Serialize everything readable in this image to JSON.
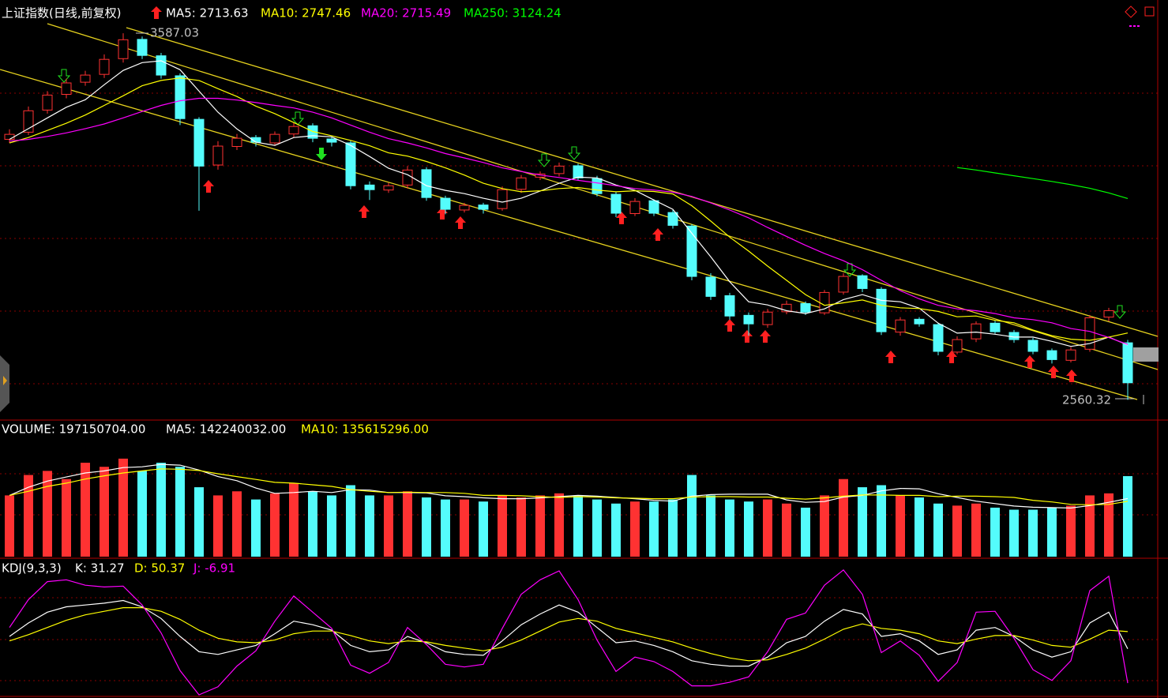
{
  "chart_data": [
    {
      "type": "candlestick",
      "title": "上证指数(日线,前复权)",
      "open": [
        3290,
        3310,
        3372,
        3416,
        3450,
        3472,
        3516,
        3570,
        3524,
        3468,
        3346,
        3218,
        3270,
        3295,
        3280,
        3305,
        3328,
        3291,
        3280,
        3162,
        3148,
        3162,
        3205,
        3125,
        3092,
        3106,
        3096,
        3150,
        3184,
        3194,
        3216,
        3180,
        3136,
        3082,
        3118,
        3085,
        3047,
        2904,
        2852,
        2797,
        2771,
        2807,
        2830,
        2804,
        2862,
        2908,
        2870,
        2750,
        2786,
        2771,
        2694,
        2731,
        2775,
        2749,
        2727,
        2698,
        2671,
        2702,
        2792,
        2720
      ],
      "high": [
        3318,
        3382,
        3425,
        3460,
        3482,
        3528,
        3587.03,
        3578,
        3532,
        3475,
        3352,
        3285,
        3305,
        3302,
        3312,
        3338,
        3335,
        3298,
        3286,
        3172,
        3168,
        3215,
        3212,
        3132,
        3112,
        3112,
        3158,
        3190,
        3200,
        3225,
        3222,
        3188,
        3142,
        3125,
        3122,
        3092,
        3052,
        2915,
        2860,
        2805,
        2815,
        2838,
        2836,
        2868,
        2915,
        2912,
        2876,
        2792,
        2792,
        2776,
        2738,
        2780,
        2782,
        2756,
        2734,
        2704,
        2708,
        2798,
        2818,
        2728
      ],
      "low": [
        3280,
        3302,
        3362,
        3405,
        3440,
        3462,
        3505,
        3515,
        3460,
        3330,
        3090,
        3205,
        3260,
        3270,
        3272,
        3295,
        3282,
        3270,
        3150,
        3120,
        3140,
        3152,
        3118,
        3080,
        3085,
        3082,
        3090,
        3140,
        3176,
        3186,
        3175,
        3130,
        3072,
        3075,
        3075,
        3040,
        2895,
        2840,
        2785,
        2740,
        2762,
        2800,
        2798,
        2798,
        2855,
        2862,
        2742,
        2740,
        2765,
        2685,
        2688,
        2722,
        2745,
        2720,
        2688,
        2662,
        2665,
        2695,
        2780,
        2560.32
      ],
      "close": [
        3304,
        3370,
        3414,
        3448,
        3470,
        3514,
        3569,
        3525,
        3470,
        3348,
        3215,
        3271,
        3293,
        3282,
        3304,
        3326,
        3293,
        3282,
        3160,
        3149,
        3160,
        3204,
        3127,
        3094,
        3105,
        3094,
        3149,
        3182,
        3193,
        3215,
        3182,
        3138,
        3083,
        3116,
        3083,
        3049,
        2906,
        2850,
        2795,
        2773,
        2806,
        2828,
        2806,
        2861,
        2906,
        2872,
        2751,
        2784,
        2773,
        2696,
        2729,
        2773,
        2751,
        2729,
        2696,
        2673,
        2700,
        2790,
        2810,
        2608
      ],
      "series": [
        {
          "label": "MA5: 2713.63",
          "color": "#ffffff",
          "values": [
            3290,
            3320,
            3350,
            3380,
            3401,
            3443,
            3483,
            3505,
            3510,
            3485,
            3425,
            3366,
            3319,
            3282,
            3273,
            3295,
            3300,
            3297,
            3273,
            3242,
            3209,
            3191,
            3160,
            3147,
            3138,
            3125,
            3114,
            3125,
            3145,
            3167,
            3184,
            3182,
            3162,
            3147,
            3120,
            3094,
            3027,
            2961,
            2891,
            2835,
            2826,
            2810,
            2802,
            2815,
            2841,
            2855,
            2839,
            2835,
            2817,
            2775,
            2747,
            2750,
            2744,
            2736,
            2736,
            2724,
            2710,
            2718,
            2736,
            2713.63
          ]
        },
        {
          "label": "MA10: 2747.46",
          "color": "#ffff00",
          "values": [
            3280,
            3295,
            3315,
            3335,
            3358,
            3385,
            3412,
            3440,
            3455,
            3462,
            3455,
            3432,
            3410,
            3383,
            3362,
            3337,
            3312,
            3300,
            3287,
            3272,
            3252,
            3243,
            3228,
            3210,
            3190,
            3167,
            3152,
            3143,
            3146,
            3152,
            3155,
            3148,
            3143,
            3146,
            3144,
            3137,
            3104,
            3061,
            3016,
            2977,
            2935,
            2895,
            2855,
            2825,
            2832,
            2840,
            2825,
            2818,
            2816,
            2808,
            2793,
            2795,
            2783,
            2776,
            2756,
            2740,
            2730,
            2727,
            2736,
            2747.46
          ]
        },
        {
          "label": "MA20: 2715.49",
          "color": "#ff00ff",
          "values": [
            3285,
            3290,
            3298,
            3308,
            3320,
            3333,
            3350,
            3368,
            3385,
            3398,
            3405,
            3405,
            3400,
            3393,
            3385,
            3378,
            3366,
            3350,
            3330,
            3310,
            3292,
            3280,
            3266,
            3250,
            3238,
            3225,
            3210,
            3200,
            3190,
            3183,
            3175,
            3168,
            3160,
            3152,
            3148,
            3142,
            3130,
            3112,
            3092,
            3070,
            3043,
            3018,
            2993,
            2970,
            2950,
            2925,
            2895,
            2866,
            2843,
            2825,
            2815,
            2810,
            2802,
            2790,
            2785,
            2776,
            2760,
            2752,
            2735,
            2715.49
          ]
        },
        {
          "label": "MA250: 3124.24",
          "color": "#00ff00",
          "values": [
            null,
            null,
            null,
            null,
            null,
            null,
            null,
            null,
            null,
            null,
            null,
            null,
            null,
            null,
            null,
            null,
            null,
            null,
            null,
            null,
            null,
            null,
            null,
            null,
            null,
            null,
            null,
            null,
            null,
            null,
            null,
            null,
            null,
            null,
            null,
            null,
            null,
            null,
            null,
            null,
            null,
            null,
            null,
            null,
            null,
            null,
            null,
            null,
            null,
            null,
            3211,
            3204,
            3196,
            3188,
            3180,
            3172,
            3163,
            3153,
            3140,
            3124.24
          ]
        }
      ],
      "up_color": "#ff3232",
      "down_color": "#54fcfc",
      "ylim": [
        2508,
        3625
      ],
      "annotations": [
        "3587.03",
        "2560.32"
      ]
    },
    {
      "type": "bar",
      "title": "VOLUME: 197150704.00",
      "values": [
        150000000,
        200000000,
        210000000,
        190000000,
        230000000,
        220000000,
        240000000,
        210000000,
        230000000,
        220000000,
        170000000,
        150000000,
        160000000,
        140000000,
        155000000,
        180000000,
        160000000,
        150000000,
        175000000,
        150000000,
        150000000,
        160000000,
        145000000,
        140000000,
        140000000,
        135000000,
        150000000,
        145000000,
        150000000,
        155000000,
        150000000,
        140000000,
        130000000,
        135000000,
        135000000,
        140000000,
        200000000,
        150000000,
        140000000,
        135000000,
        140000000,
        130000000,
        120000000,
        150000000,
        190000000,
        170000000,
        175000000,
        150000000,
        145000000,
        130000000,
        125000000,
        130000000,
        120000000,
        115000000,
        115000000,
        120000000,
        125000000,
        150000000,
        155000000,
        197150704
      ],
      "series": [
        {
          "label": "MA5: 142240032.00",
          "color": "#ffffff",
          "values": [
            150000000,
            170000000,
            185000000,
            195000000,
            205000000,
            210000000,
            218000000,
            220000000,
            226000000,
            224000000,
            212000000,
            196000000,
            186000000,
            168000000,
            155000000,
            157000000,
            160000000,
            157000000,
            164000000,
            163000000,
            157000000,
            157000000,
            156000000,
            149000000,
            147000000,
            144000000,
            142000000,
            142000000,
            144000000,
            147000000,
            150000000,
            148000000,
            145000000,
            142000000,
            138000000,
            136000000,
            148000000,
            152000000,
            153000000,
            153000000,
            153000000,
            139000000,
            133000000,
            135000000,
            146000000,
            150000000,
            161000000,
            167000000,
            166000000,
            154000000,
            145000000,
            136000000,
            130000000,
            124000000,
            121000000,
            120000000,
            119000000,
            125000000,
            133000000,
            142240032
          ]
        },
        {
          "label": "MA10: 135615296.00",
          "color": "#ffff00",
          "values": [
            150000000,
            160000000,
            172000000,
            180000000,
            190000000,
            198000000,
            205000000,
            210000000,
            215000000,
            214000000,
            211000000,
            203000000,
            196000000,
            189000000,
            182000000,
            180000000,
            176000000,
            172000000,
            164000000,
            160000000,
            157000000,
            158000000,
            157000000,
            157000000,
            155000000,
            150000000,
            150000000,
            149000000,
            147000000,
            145000000,
            147000000,
            146000000,
            144000000,
            143000000,
            142000000,
            142000000,
            146000000,
            147000000,
            147000000,
            146000000,
            146000000,
            143000000,
            141000000,
            144000000,
            148000000,
            151000000,
            151000000,
            150000000,
            150000000,
            147000000,
            148000000,
            148000000,
            147000000,
            145000000,
            138000000,
            134000000,
            128000000,
            127000000,
            128000000,
            135615296
          ]
        }
      ],
      "ylim": [
        0,
        290000000
      ]
    },
    {
      "type": "line",
      "title": "KDJ(9,3,3)",
      "series": [
        {
          "label": "K: 31.27",
          "color": "#ffffff",
          "values": [
            45,
            60,
            72,
            78,
            80,
            82,
            85,
            78,
            65,
            45,
            28,
            25,
            30,
            35,
            48,
            62,
            58,
            52,
            35,
            28,
            30,
            45,
            38,
            28,
            25,
            24,
            40,
            58,
            70,
            80,
            72,
            55,
            38,
            40,
            35,
            28,
            18,
            14,
            12,
            12,
            22,
            38,
            45,
            62,
            75,
            70,
            45,
            48,
            40,
            25,
            30,
            52,
            55,
            45,
            30,
            22,
            28,
            60,
            72,
            31.27
          ]
        },
        {
          "label": "D: 50.37",
          "color": "#ffff00",
          "values": [
            40,
            47,
            55,
            63,
            69,
            73,
            77,
            77,
            73,
            64,
            52,
            43,
            39,
            38,
            41,
            48,
            51,
            51,
            46,
            40,
            37,
            40,
            39,
            35,
            32,
            29,
            33,
            41,
            51,
            61,
            65,
            62,
            54,
            49,
            44,
            39,
            32,
            26,
            21,
            18,
            19,
            25,
            32,
            42,
            53,
            59,
            54,
            52,
            48,
            40,
            37,
            42,
            46,
            46,
            41,
            35,
            33,
            42,
            52,
            50.37
          ]
        },
        {
          "label": "J: -6.91",
          "color": "#ff00ff",
          "values": [
            55,
            86,
            106,
            108,
            102,
            100,
            101,
            80,
            49,
            7,
            -20,
            -11,
            12,
            29,
            62,
            90,
            72,
            54,
            13,
            4,
            16,
            55,
            36,
            14,
            11,
            14,
            54,
            92,
            108,
            118,
            86,
            41,
            6,
            22,
            17,
            6,
            -10,
            -10,
            -6,
            0,
            28,
            64,
            71,
            102,
            119,
            92,
            27,
            40,
            24,
            -5,
            16,
            72,
            73,
            43,
            8,
            -4,
            18,
            96,
            112,
            -6.91
          ]
        }
      ],
      "ylim": [
        -20,
        125
      ]
    }
  ]
}
